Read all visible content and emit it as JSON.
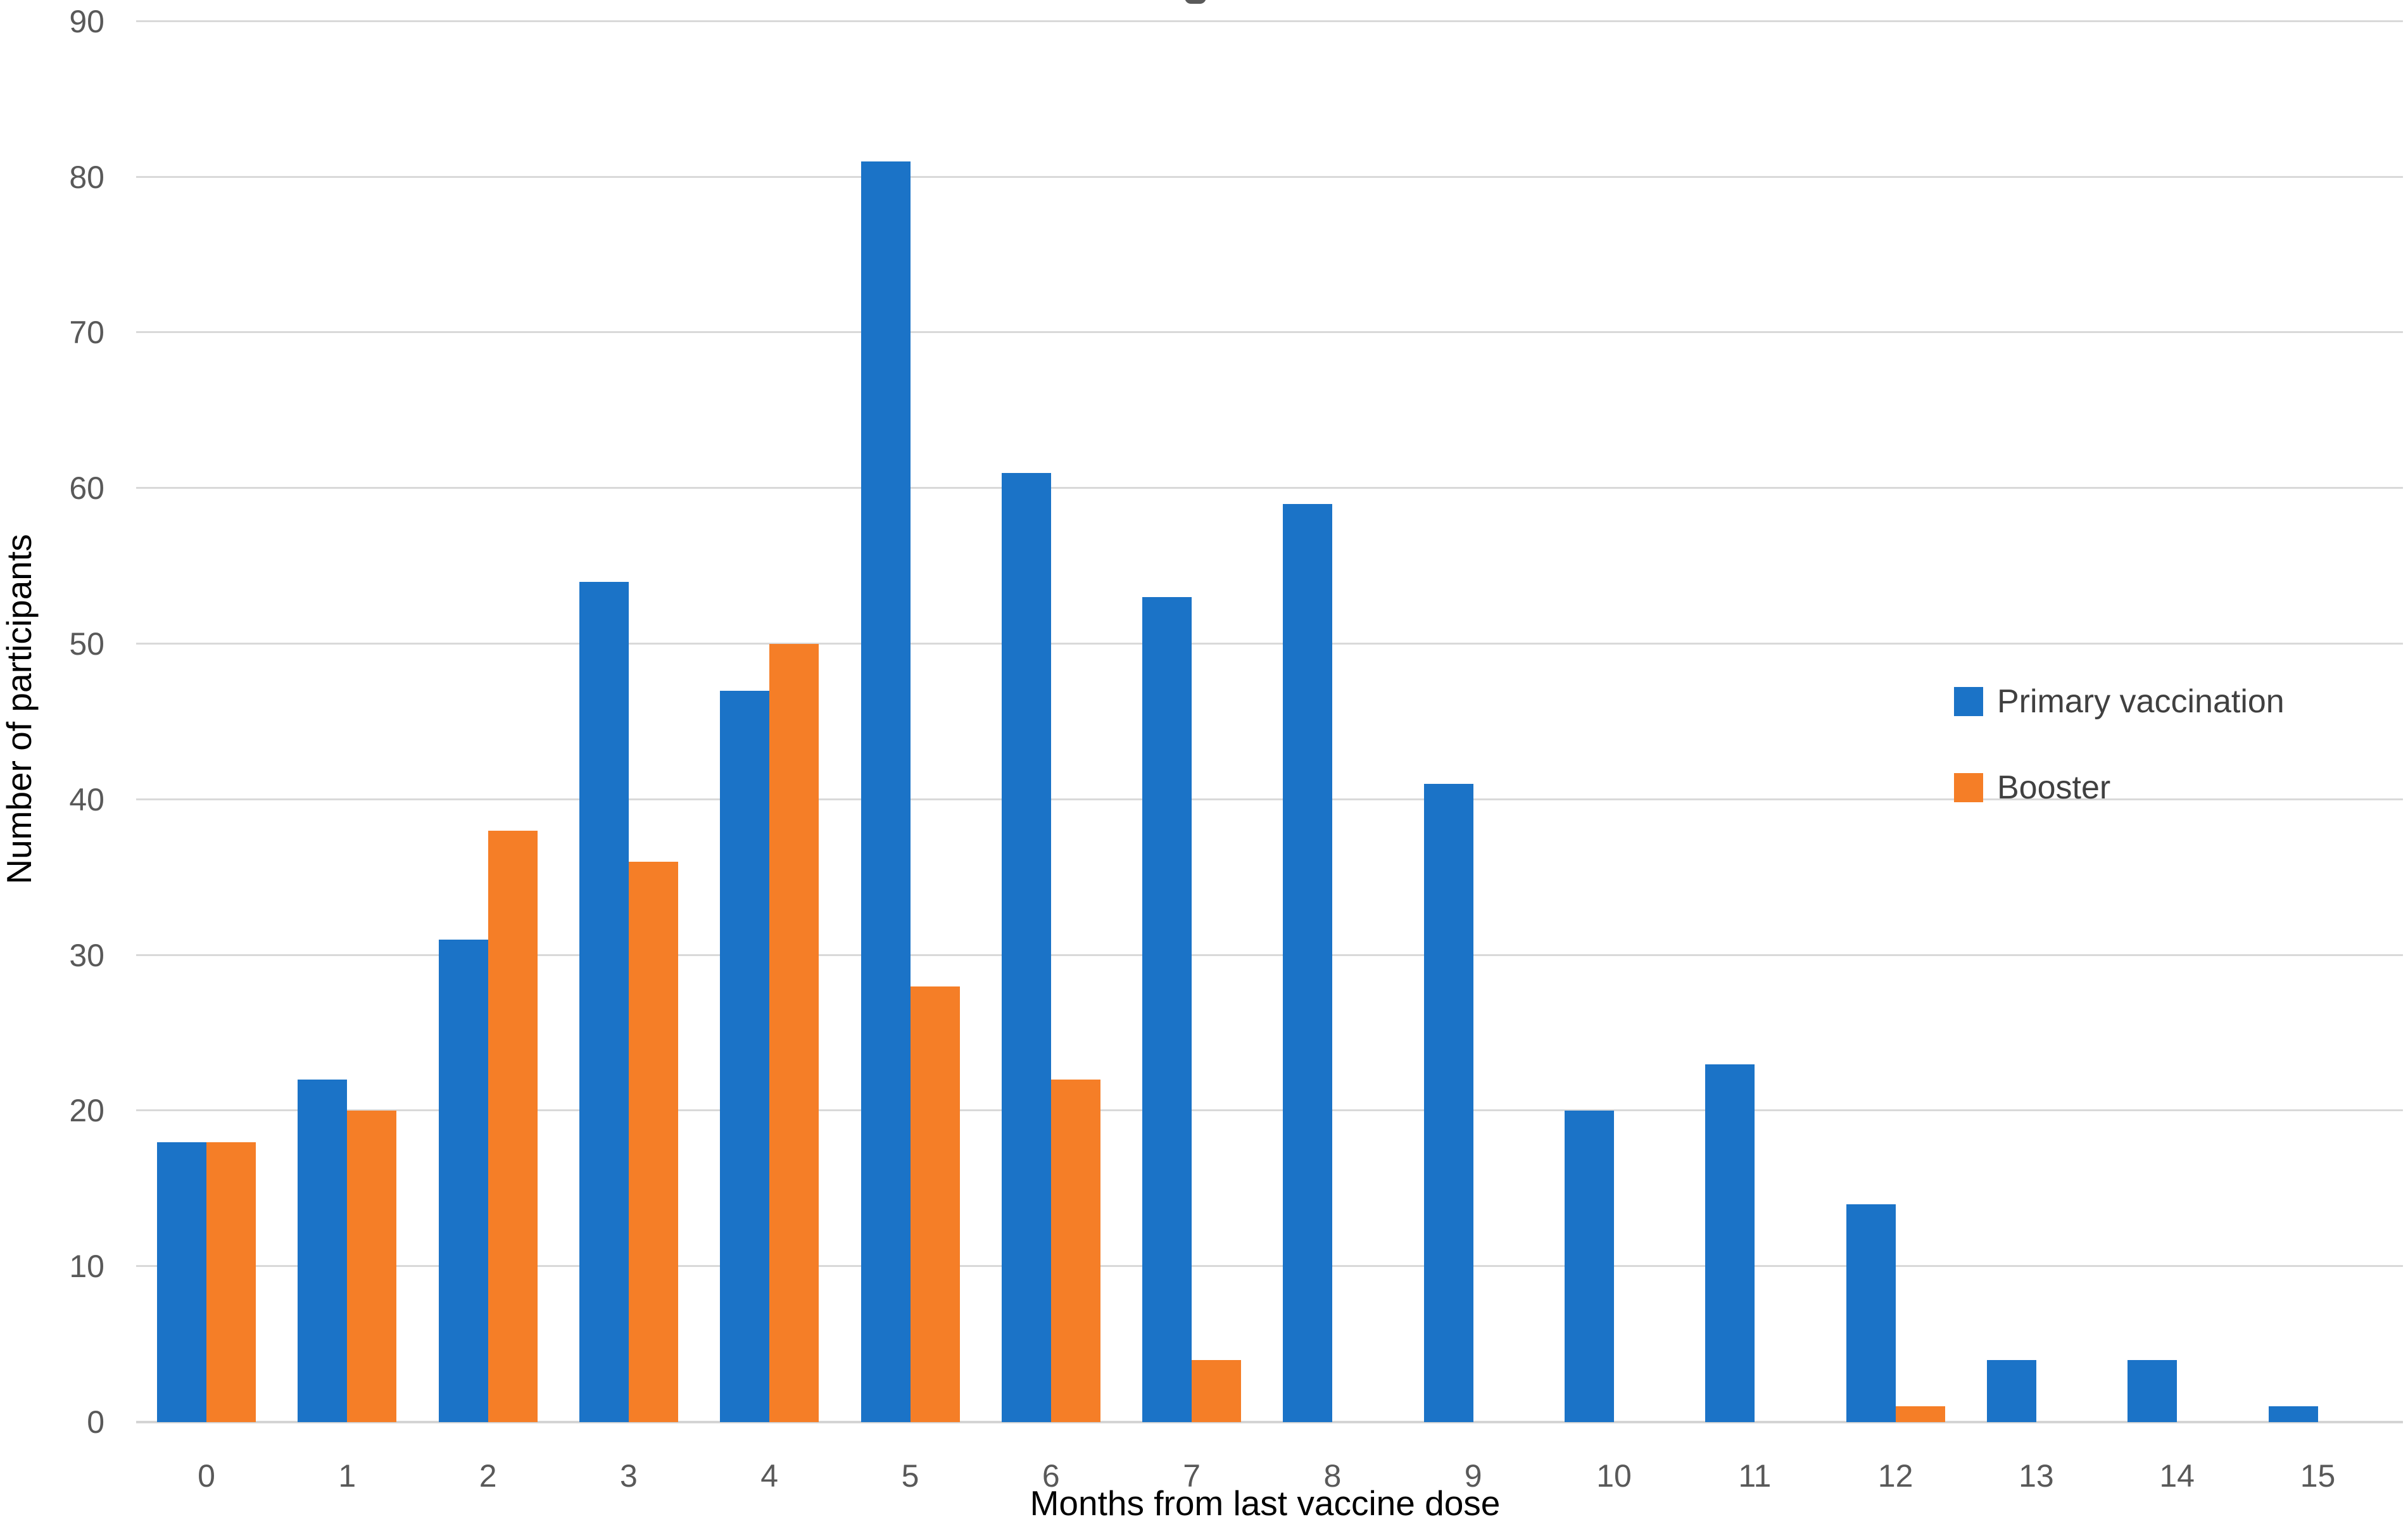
{
  "chart_data": {
    "type": "bar",
    "title": "",
    "xlabel": "Months from last vaccine dose",
    "ylabel": "Number of participants",
    "categories": [
      "0",
      "1",
      "2",
      "3",
      "4",
      "5",
      "6",
      "7",
      "8",
      "9",
      "10",
      "11",
      "12",
      "13",
      "14",
      "15"
    ],
    "series": [
      {
        "name": "Primary vaccination",
        "color": "#1B73C7",
        "values": [
          18,
          22,
          31,
          54,
          47,
          81,
          61,
          53,
          59,
          41,
          20,
          23,
          14,
          4,
          4,
          1
        ]
      },
      {
        "name": "Booster",
        "color": "#F57E27",
        "values": [
          18,
          20,
          38,
          36,
          50,
          28,
          22,
          4,
          0,
          0,
          0,
          0,
          1,
          0,
          0,
          0
        ]
      }
    ],
    "ylim": [
      0,
      90
    ],
    "ytick_step": 10,
    "y_tick_labels": [
      "0",
      "10",
      "20",
      "30",
      "40",
      "50",
      "60",
      "70",
      "80",
      "90"
    ],
    "grid": true,
    "legend_position": "right",
    "grid_color": "#D9D9D9",
    "tick_label_color": "#595959",
    "axis_title_color": "#000000",
    "background_color": "#FFFFFF"
  }
}
